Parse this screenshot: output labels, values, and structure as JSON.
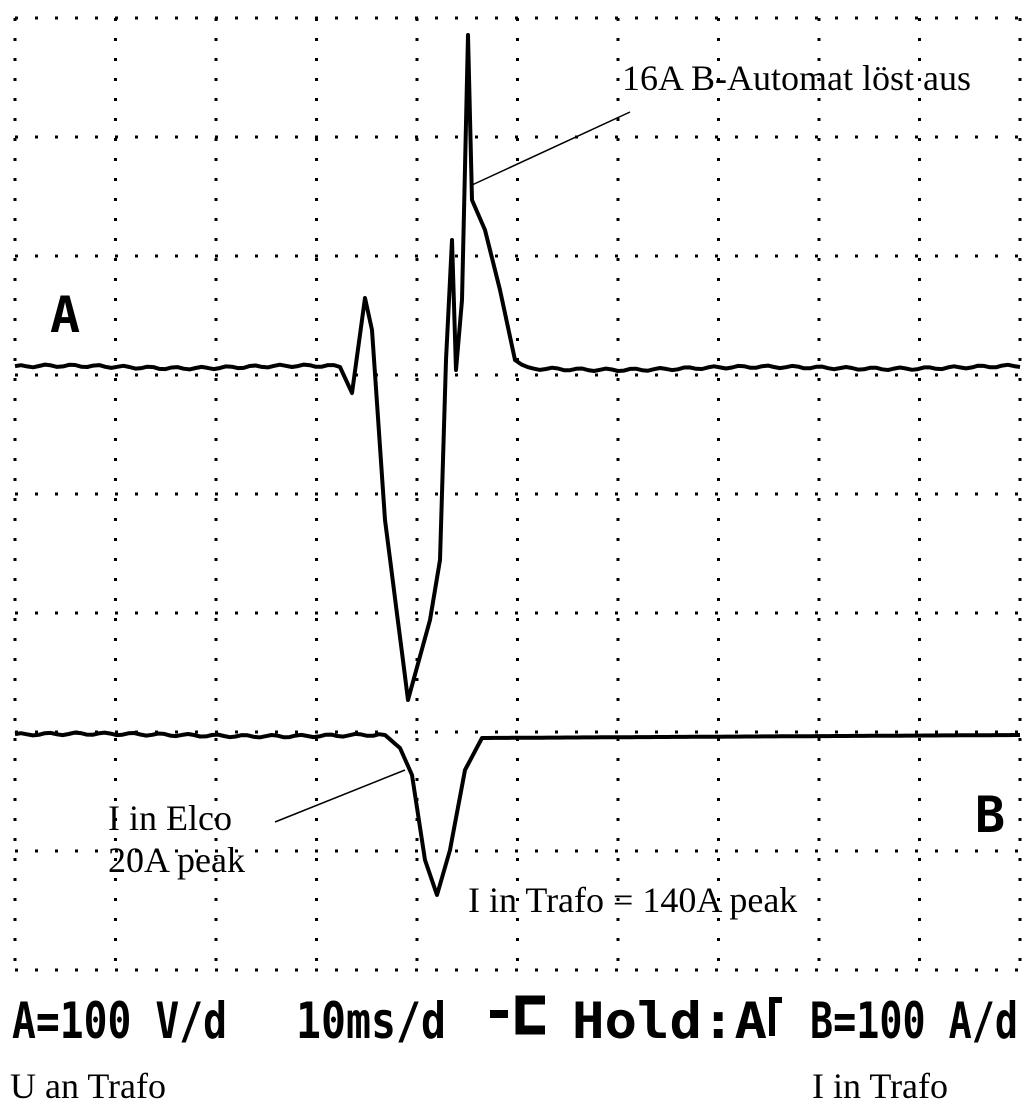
{
  "channel_labels": {
    "a": "A",
    "b": "B"
  },
  "annotations": {
    "breaker": "16A B-Automat löst aus",
    "elco_line1": "I in Elco",
    "elco_line2": "20A peak",
    "trafo": "I in Trafo = 140A peak"
  },
  "status_bar": {
    "channel_a": "A=100 V/d",
    "timebase": "10ms/d",
    "hold": "Hold:A",
    "channel_b": "B=100 A/d"
  },
  "captions": {
    "left": "U an Trafo",
    "right": "I in Trafo"
  }
}
